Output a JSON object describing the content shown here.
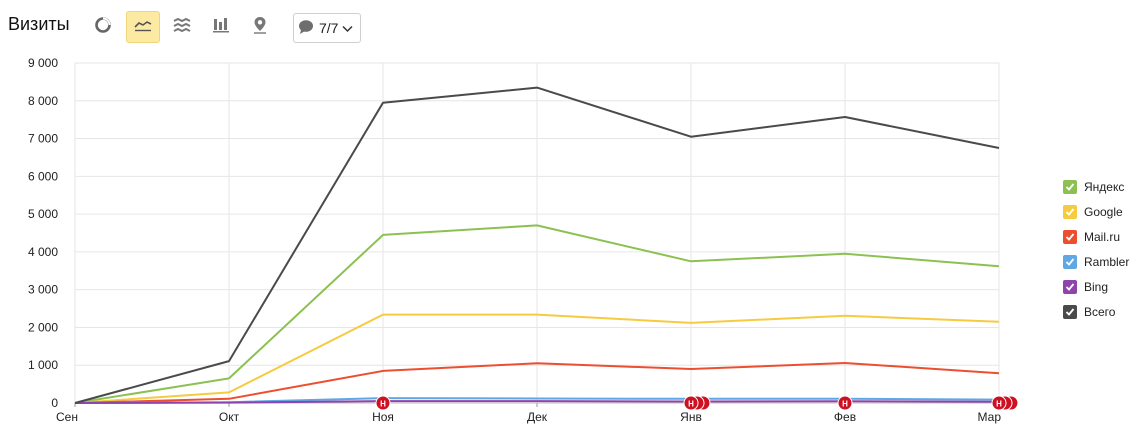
{
  "header": {
    "title": "Визиты",
    "dropdown_label": "7/7",
    "buttons": [
      {
        "icon": "pie-chart-icon",
        "active": false
      },
      {
        "icon": "line-chart-icon",
        "active": true
      },
      {
        "icon": "area-chart-icon",
        "active": false
      },
      {
        "icon": "bar-chart-icon",
        "active": false
      },
      {
        "icon": "map-icon",
        "active": false
      }
    ],
    "dropdown_icon": "comment-icon"
  },
  "chart_data": {
    "type": "line",
    "categories": [
      "Сен",
      "Окт",
      "Ноя",
      "Дек",
      "Янв",
      "Фев",
      "Мар"
    ],
    "ylim": [
      0,
      9000
    ],
    "yticks": [
      0,
      1000,
      2000,
      3000,
      4000,
      5000,
      6000,
      7000,
      8000,
      9000
    ],
    "ytick_labels": [
      "0",
      "1 000",
      "2 000",
      "3 000",
      "4 000",
      "5 000",
      "6 000",
      "7 000",
      "8 000",
      "9 000"
    ],
    "grid": true,
    "legend_position": "right",
    "series": [
      {
        "name": "Яндекс",
        "color": "#8cc152",
        "values": [
          0,
          650,
          4450,
          4700,
          3750,
          3950,
          3620
        ]
      },
      {
        "name": "Google",
        "color": "#f6cb40",
        "values": [
          0,
          280,
          2340,
          2340,
          2120,
          2310,
          2150
        ]
      },
      {
        "name": "Mail.ru",
        "color": "#ec4f30",
        "values": [
          0,
          110,
          850,
          1050,
          900,
          1060,
          790
        ]
      },
      {
        "name": "Rambler",
        "color": "#5fa8e3",
        "values": [
          0,
          20,
          130,
          120,
          110,
          110,
          90
        ]
      },
      {
        "name": "Bing",
        "color": "#8e44ad",
        "values": [
          0,
          10,
          50,
          50,
          40,
          45,
          35
        ]
      },
      {
        "name": "Всего",
        "color": "#4a4a4a",
        "values": [
          0,
          1110,
          7950,
          8350,
          7050,
          7570,
          6750
        ]
      }
    ],
    "annotations": [
      {
        "category": "Ноя",
        "label": "Н",
        "count": 1
      },
      {
        "category": "Янв",
        "label": "Н",
        "count": 3
      },
      {
        "category": "Фев",
        "label": "Н",
        "count": 1
      },
      {
        "category": "Мар",
        "label": "Н",
        "count": 3
      }
    ]
  }
}
